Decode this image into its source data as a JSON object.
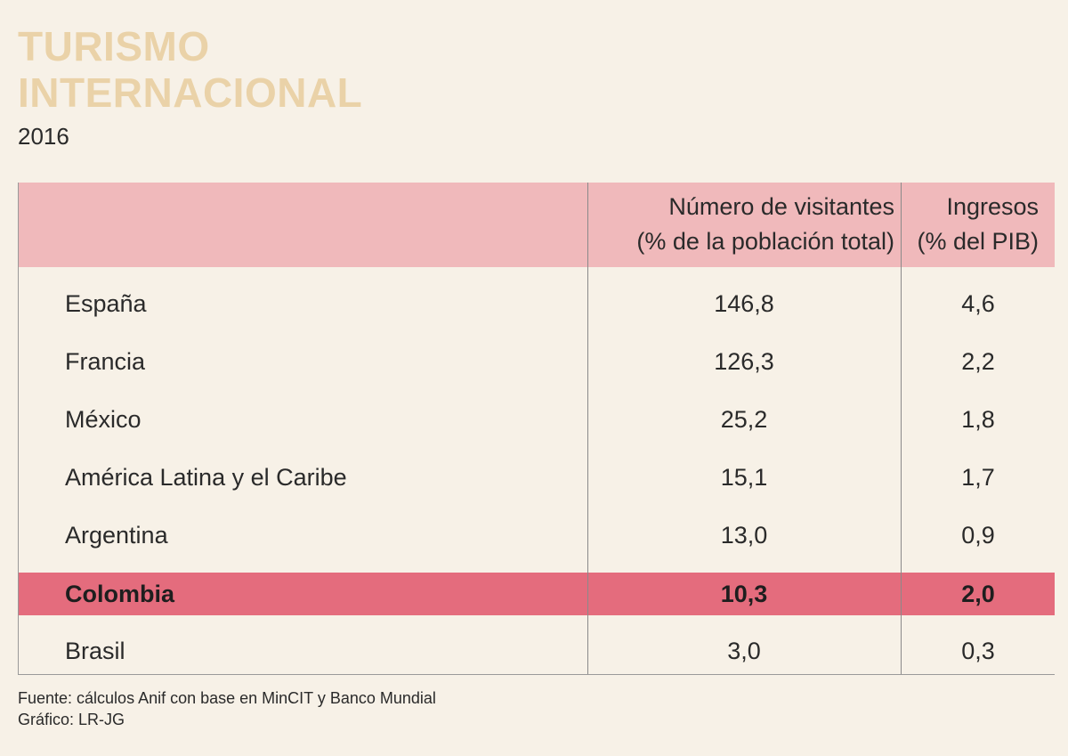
{
  "title_line1": "TURISMO",
  "title_line2": "INTERNACIONAL",
  "subtitle": "2016",
  "header": {
    "col1_line1": "Número de visitantes",
    "col1_line2": "(% de la población total)",
    "col2_line1": "Ingresos",
    "col2_line2": "(% del PIB)"
  },
  "highlight_color": "#e46c7d",
  "header_color": "#f0b9bb",
  "title_color": "#ead2a8",
  "chart_data": {
    "type": "table",
    "title": "TURISMO INTERNACIONAL",
    "subtitle": "2016",
    "columns": [
      "",
      "Número de visitantes (% de la población total)",
      "Ingresos (% del PIB)"
    ],
    "rows": [
      {
        "name": "España",
        "visitantes": "146,8",
        "ingresos": "4,6",
        "highlight": false
      },
      {
        "name": "Francia",
        "visitantes": "126,3",
        "ingresos": "2,2",
        "highlight": false
      },
      {
        "name": "México",
        "visitantes": "25,2",
        "ingresos": "1,8",
        "highlight": false
      },
      {
        "name": "América Latina y el Caribe",
        "visitantes": "15,1",
        "ingresos": "1,7",
        "highlight": false
      },
      {
        "name": "Argentina",
        "visitantes": "13,0",
        "ingresos": "0,9",
        "highlight": false
      },
      {
        "name": "Colombia",
        "visitantes": "10,3",
        "ingresos": "2,0",
        "highlight": true
      },
      {
        "name": "Brasil",
        "visitantes": "3,0",
        "ingresos": "0,3",
        "highlight": false
      }
    ]
  },
  "source_line1": "Fuente: cálculos Anif con base en MinCIT y Banco Mundial",
  "source_line2": "Gráfico: LR-JG"
}
